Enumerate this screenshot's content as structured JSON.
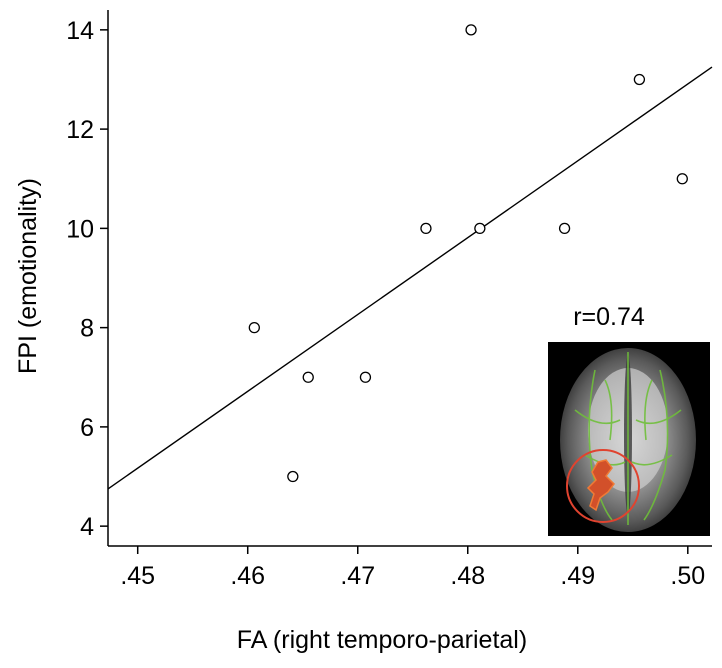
{
  "chart_data": {
    "type": "scatter",
    "xlabel": "FA (right temporo-parietal)",
    "ylabel": "FPI (emotionality)",
    "xlim": [
      0.4473,
      0.5022
    ],
    "ylim": [
      3.6,
      14.4
    ],
    "x_ticks": [
      0.45,
      0.46,
      0.47,
      0.48,
      0.49,
      0.5
    ],
    "x_tick_labels": [
      ".45",
      ".46",
      ".47",
      ".48",
      ".49",
      ".50"
    ],
    "y_ticks": [
      4,
      6,
      8,
      10,
      12,
      14
    ],
    "y_tick_labels": [
      "4",
      "6",
      "8",
      "10",
      "12",
      "14"
    ],
    "points": [
      {
        "x": 0.4606,
        "y": 8
      },
      {
        "x": 0.4641,
        "y": 5
      },
      {
        "x": 0.4655,
        "y": 7
      },
      {
        "x": 0.4707,
        "y": 7
      },
      {
        "x": 0.4762,
        "y": 10
      },
      {
        "x": 0.4803,
        "y": 14
      },
      {
        "x": 0.4811,
        "y": 10
      },
      {
        "x": 0.4888,
        "y": 10
      },
      {
        "x": 0.4956,
        "y": 13
      },
      {
        "x": 0.4995,
        "y": 11
      }
    ],
    "fit_line": {
      "x": [
        0.4473,
        0.5022
      ],
      "y": [
        4.75,
        13.25
      ]
    },
    "annotation": "r=0.74",
    "grid": false,
    "legend": "none"
  },
  "inset": {
    "kind": "axial brain slice (FA map) with highlighted right temporo-parietal cluster",
    "colors": {
      "background": "#000000",
      "tract": "#6fbf3a",
      "cluster": "#d2502a",
      "circle": "#e0432f"
    }
  }
}
